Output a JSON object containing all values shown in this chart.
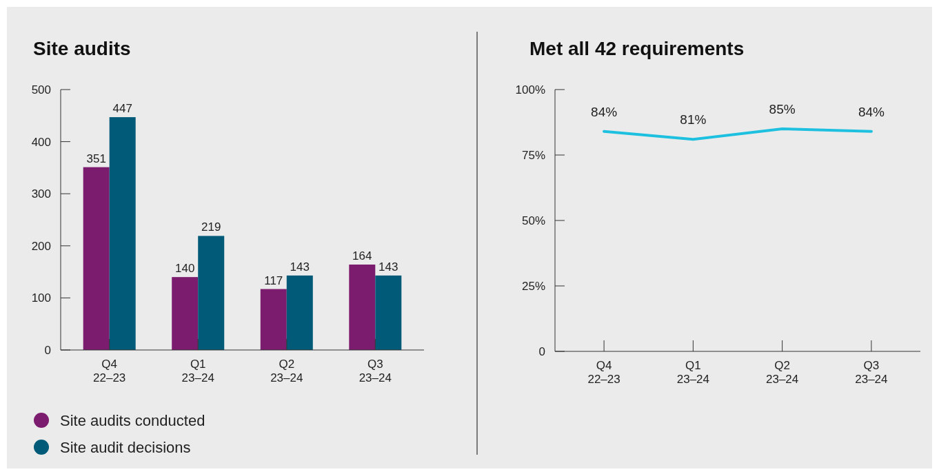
{
  "chart_data": [
    {
      "type": "bar",
      "title": "Site audits",
      "categories": [
        "Q4\n22–23",
        "Q1\n23–24",
        "Q2\n23–24",
        "Q3\n23–24"
      ],
      "series": [
        {
          "name": "Site audits conducted",
          "color": "#7b1c6e",
          "values": [
            351,
            140,
            117,
            164
          ]
        },
        {
          "name": "Site audit decisions",
          "color": "#005a78",
          "values": [
            447,
            219,
            143,
            143
          ]
        }
      ],
      "ylim": [
        0,
        500
      ],
      "yticks": [
        0,
        100,
        200,
        300,
        400,
        500
      ],
      "data_labels": true,
      "legend": "bottom left"
    },
    {
      "type": "line",
      "title": "Met all 42 requirements",
      "categories": [
        "Q4\n22–23",
        "Q1\n23–24",
        "Q2\n23–24",
        "Q3\n23–24"
      ],
      "series": [
        {
          "color": "#1ec0e0",
          "values": [
            84,
            81,
            85,
            84
          ],
          "value_labels": [
            "84%",
            "81%",
            "85%",
            "84%"
          ]
        }
      ],
      "ylim": [
        0,
        100
      ],
      "yticks": [
        {
          "value": 0,
          "label": "0"
        },
        {
          "value": 25,
          "label": "25%"
        },
        {
          "value": 50,
          "label": "50%"
        },
        {
          "value": 75,
          "label": "75%"
        },
        {
          "value": 100,
          "label": "100%"
        }
      ],
      "marker": "none",
      "line_style": "solid"
    }
  ]
}
